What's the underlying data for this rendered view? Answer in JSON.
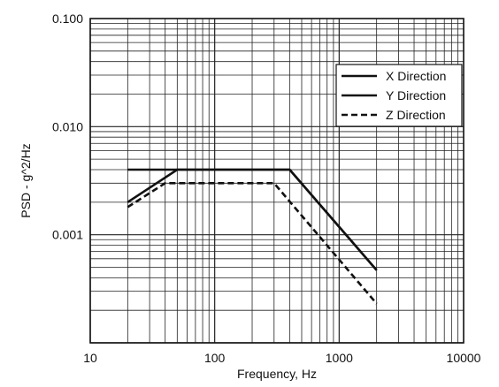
{
  "chart_data": {
    "type": "line",
    "title": "",
    "xlabel": "Frequency, Hz",
    "ylabel": "PSD - g^2/Hz",
    "xscale": "log",
    "yscale": "log",
    "xlim": [
      10,
      10000
    ],
    "ylim": [
      0.0001,
      0.1
    ],
    "grid": true,
    "legend_position": "top-right",
    "x_tick_labels": [
      "10",
      "100",
      "1000",
      "10000"
    ],
    "y_tick_labels": [
      "0.100",
      "0.010",
      "0.001"
    ],
    "series": [
      {
        "name": "X Direction",
        "style": "solid",
        "color": "#111111",
        "x": [
          20,
          50,
          400,
          2000
        ],
        "y": [
          0.004,
          0.004,
          0.004,
          0.00047
        ]
      },
      {
        "name": "Y Direction",
        "style": "solid",
        "color": "#111111",
        "x": [
          20,
          50,
          400,
          2000
        ],
        "y": [
          0.002,
          0.004,
          0.004,
          0.00047
        ]
      },
      {
        "name": "Z Direction",
        "style": "dashed",
        "color": "#111111",
        "x": [
          20,
          40,
          300,
          2000
        ],
        "y": [
          0.0018,
          0.003,
          0.003,
          0.00023
        ]
      }
    ]
  }
}
